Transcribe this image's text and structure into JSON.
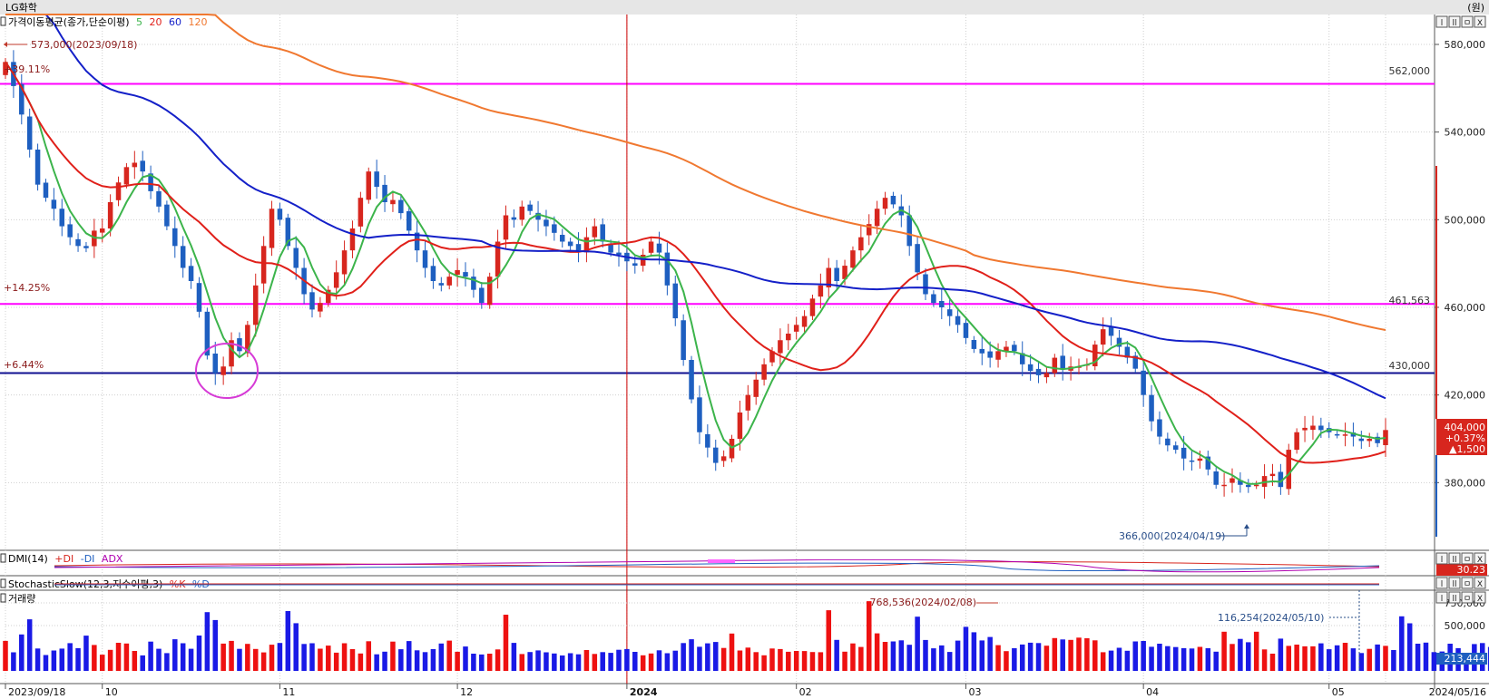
{
  "app": {
    "stock_name": "LG화학",
    "unit_label": "(원)",
    "window_buttons": [
      "l",
      "ll",
      "ㅁ",
      "X"
    ]
  },
  "colors": {
    "up": "#d7261e",
    "down": "#1e5fc0",
    "ma5": "#3cb44b",
    "ma20": "#e0201a",
    "ma60": "#1420c8",
    "ma120": "#f07830",
    "hline_pink": "#ff00ff",
    "hline_navy": "#101090",
    "vline": "#cc0000"
  },
  "chart_data": [
    {
      "type": "candlestick",
      "panel": "price",
      "title": "가격이동평균(종가,단순이평)",
      "legend": [
        {
          "label": "5",
          "color": "#3cb44b"
        },
        {
          "label": "20",
          "color": "#e0201a"
        },
        {
          "label": "60",
          "color": "#1420c8"
        },
        {
          "label": "120",
          "color": "#f07830"
        }
      ],
      "ylim": [
        352000,
        592000
      ],
      "y_ticks": [
        "580,000",
        "540,000",
        "500,000",
        "460,000",
        "420,000",
        "380,000"
      ],
      "y_tick_values": [
        580000,
        540000,
        500000,
        460000,
        420000,
        380000
      ],
      "x_tick_labels": [
        "2023/09/18",
        "10",
        "11",
        "12",
        "2024",
        "02",
        "03",
        "04",
        "05",
        "2024/05/16"
      ],
      "x_tick_index": [
        0,
        12,
        34,
        56,
        77,
        98,
        119,
        141,
        164,
        186
      ],
      "current": {
        "price": "404,000",
        "change_pct": "+0.37%",
        "change": "▲1,500"
      },
      "annotations": {
        "high": "573,000(2023/09/18)",
        "low": "366,000(2024/04/19)",
        "pct_labels": [
          "+39.11%",
          "+14.25%",
          "+6.44%"
        ],
        "hline_labels": [
          "562,000",
          "461,563",
          "430,000"
        ]
      },
      "hlines": [
        562000,
        461563,
        430000
      ],
      "vline_index": 77,
      "closes": [
        572000,
        561000,
        548000,
        532000,
        516000,
        510000,
        505000,
        497000,
        492000,
        488000,
        487000,
        495000,
        496000,
        508000,
        517000,
        524000,
        526000,
        522000,
        513000,
        506000,
        497000,
        488000,
        478000,
        472000,
        458000,
        438000,
        430000,
        433000,
        445000,
        440000,
        452000,
        470000,
        488000,
        505000,
        500000,
        488000,
        478000,
        466000,
        459000,
        462000,
        468000,
        476000,
        486000,
        496000,
        510000,
        522000,
        515000,
        508000,
        509000,
        503000,
        495000,
        486000,
        478000,
        472000,
        470000,
        474000,
        477000,
        474000,
        468000,
        462000,
        474000,
        490000,
        502000,
        500000,
        506000,
        504000,
        500000,
        497000,
        494000,
        490000,
        488000,
        486000,
        492000,
        497000,
        490000,
        485000,
        484000,
        481000,
        479000,
        484000,
        490000,
        485000,
        470000,
        455000,
        436000,
        418000,
        403000,
        396000,
        389000,
        392000,
        400000,
        412000,
        420000,
        427000,
        434000,
        440000,
        445000,
        448000,
        452000,
        456000,
        464000,
        470000,
        478000,
        472000,
        479000,
        486000,
        492000,
        498000,
        505000,
        510000,
        507000,
        502000,
        488000,
        476000,
        466000,
        462000,
        460000,
        456000,
        452000,
        446000,
        441000,
        439000,
        437000,
        440000,
        442000,
        440000,
        434000,
        431000,
        429000,
        430000,
        437000,
        432000,
        433000,
        433000,
        434000,
        443000,
        450000,
        447000,
        442000,
        437000,
        432000,
        420000,
        408000,
        401000,
        397000,
        395000,
        391000,
        390000,
        391000,
        386000,
        379000,
        379000,
        382000,
        379000,
        378000,
        379000,
        383000,
        384000,
        378000,
        395000,
        403000,
        405000,
        406000,
        404000,
        403000,
        402000,
        402000,
        401000,
        399000,
        400000,
        398000,
        404000
      ],
      "volume": {
        "title": "거래량",
        "ylim": [
          0,
          850000
        ],
        "y_ticks": [
          "750,000",
          "500,000"
        ],
        "y_tick_values": [
          750000,
          500000
        ],
        "current": "213,444",
        "annotations": {
          "max": "768,536(2024/02/08)",
          "recent": "116,254(2024/05/10)"
        },
        "values": [
          331000,
          205000,
          402000,
          569000,
          247000,
          175000,
          225000,
          246000,
          306000,
          251000,
          389000,
          286000,
          179000,
          232000,
          310000,
          302000,
          220000,
          171000,
          323000,
          244000,
          196000,
          349000,
          305000,
          244000,
          390000,
          648000,
          561000,
          301000,
          331000,
          243000,
          298000,
          242000,
          204000,
          289000,
          308000,
          660000,
          526000,
          297000,
          305000,
          245000,
          279000,
          201000,
          305000,
          240000,
          192000,
          327000,
          183000,
          212000,
          323000,
          239000,
          329000,
          227000,
          207000,
          240000,
          302000,
          334000,
          211000,
          269000,
          190000,
          181000,
          190000,
          237000,
          620000,
          309000,
          186000,
          208000,
          226000,
          205000,
          192000,
          170000,
          195000,
          183000,
          230000,
          187000,
          207000,
          199000,
          233000,
          241000,
          210000,
          172000,
          192000,
          227000,
          195000,
          223000,
          307000,
          349000,
          266000,
          304000,
          319000,
          253000,
          412000,
          225000,
          257000,
          207000,
          172000,
          247000,
          241000,
          211000,
          220000,
          219000,
          208000,
          206000,
          669000,
          342000,
          212000,
          303000,
          264000,
          769000,
          414000,
          320000,
          325000,
          337000,
          288000,
          598000,
          341000,
          249000,
          281000,
          209000,
          334000,
          486000,
          426000,
          336000,
          374000,
          284000,
          218000,
          250000,
          291000,
          311000,
          307000,
          278000,
          362000,
          347000,
          342000,
          367000,
          360000,
          337000,
          206000,
          224000,
          255000,
          222000,
          325000,
          330000,
          266000,
          300000,
          273000,
          263000,
          251000,
          247000,
          265000,
          250000,
          212000,
          432000,
          297000,
          353000,
          316000,
          432000,
          237000,
          190000,
          356000,
          276000,
          290000,
          271000,
          271000,
          304000,
          239000,
          282000,
          310000,
          249000,
          197000,
          243000,
          291000,
          276000,
          230000,
          602000,
          525000,
          300000,
          312000,
          207000,
          214000,
          300000,
          251000,
          116000,
          296000,
          307000,
          264000,
          213000
        ]
      }
    },
    {
      "type": "line",
      "panel": "indicator",
      "title": "DMI(14)",
      "legend": [
        {
          "label": "+DI",
          "color": "#d7261e"
        },
        {
          "label": "-DI",
          "color": "#1e5fc0"
        },
        {
          "label": "ADX",
          "color": "#b000b0"
        }
      ],
      "current": "30.23"
    },
    {
      "type": "line",
      "panel": "indicator",
      "title": "StochasticSlow(12,3,지수이평,3)",
      "legend": [
        {
          "label": "%K",
          "color": "#d7261e"
        },
        {
          "label": "%D",
          "color": "#1e5fc0"
        }
      ]
    }
  ]
}
